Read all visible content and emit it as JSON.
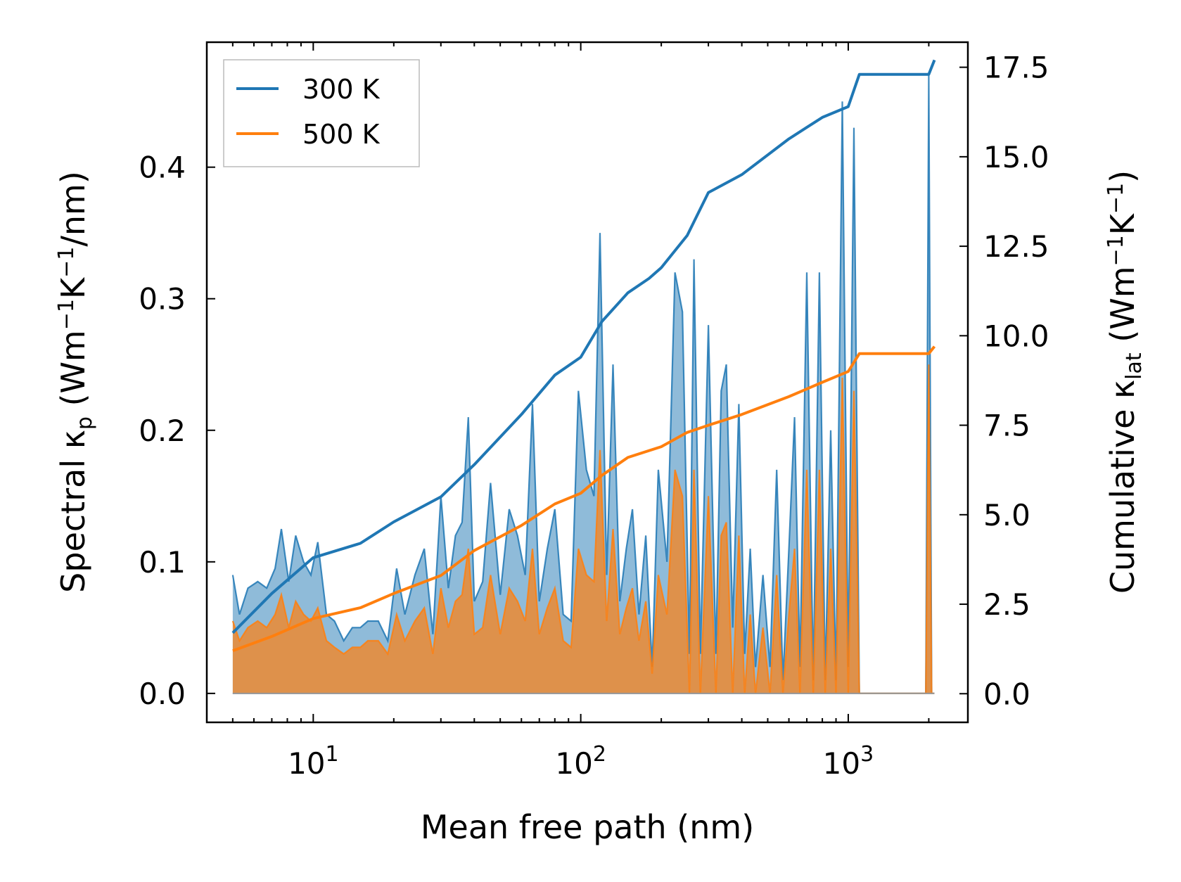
{
  "chart_data": {
    "type": "line",
    "title": "",
    "xlabel": "Mean free path (nm)",
    "ylabel_left": "Spectral κ_p (Wm⁻¹K⁻¹/nm)",
    "ylabel_right": "Cumulative κ_lat (Wm⁻¹K⁻¹)",
    "ylabel_left_parts": {
      "pre": "Spectral κ",
      "sub": "p",
      "post": " (Wm",
      "sup1": "−1",
      "mid": "K",
      "sup2": "−1",
      "tail": "/nm)"
    },
    "ylabel_right_parts": {
      "pre": "Cumulative κ",
      "sub": "lat",
      "post": " (Wm",
      "sup1": "−1",
      "mid": "K",
      "sup2": "−1",
      "tail": ")"
    },
    "xscale": "log",
    "xlim": [
      4,
      2800
    ],
    "ylim_left": [
      -0.022,
      0.495
    ],
    "ylim_right": [
      -0.8,
      18.2
    ],
    "x_ticks": [
      {
        "value": 10,
        "base": "10",
        "exp": "1"
      },
      {
        "value": 100,
        "base": "10",
        "exp": "2"
      },
      {
        "value": 1000,
        "base": "10",
        "exp": "3"
      }
    ],
    "y_left_ticks": [
      "0.0",
      "0.1",
      "0.2",
      "0.3",
      "0.4"
    ],
    "y_left_tick_values": [
      0,
      0.1,
      0.2,
      0.3,
      0.4
    ],
    "y_right_ticks": [
      "0.0",
      "2.5",
      "5.0",
      "7.5",
      "10.0",
      "12.5",
      "15.0",
      "17.5"
    ],
    "y_right_tick_values": [
      0,
      2.5,
      5,
      7.5,
      10,
      12.5,
      15,
      17.5
    ],
    "legend": {
      "position": "top-left",
      "entries": [
        "300 K",
        "500 K"
      ]
    },
    "colors": {
      "s300": "#1f77b4",
      "s500": "#ff7f0e",
      "fill300": "#1f77b4",
      "fill500": "#ff7f0e"
    },
    "series": [
      {
        "name": "300 K",
        "axis": "right",
        "kind": "cumulative",
        "x": [
          5,
          7,
          10,
          15,
          20,
          30,
          40,
          60,
          80,
          100,
          120,
          150,
          180,
          200,
          250,
          300,
          400,
          600,
          800,
          1000,
          1100,
          2000,
          2100
        ],
        "values": [
          1.7,
          2.8,
          3.8,
          4.2,
          4.8,
          5.5,
          6.4,
          7.8,
          8.9,
          9.4,
          10.4,
          11.2,
          11.6,
          11.9,
          12.8,
          14.0,
          14.5,
          15.5,
          16.1,
          16.4,
          17.3,
          17.3,
          17.7
        ]
      },
      {
        "name": "500 K",
        "axis": "right",
        "kind": "cumulative",
        "x": [
          5,
          7,
          10,
          15,
          20,
          30,
          40,
          60,
          80,
          100,
          120,
          150,
          200,
          250,
          300,
          400,
          600,
          800,
          1000,
          1100,
          2000,
          2100
        ],
        "values": [
          1.2,
          1.6,
          2.1,
          2.4,
          2.8,
          3.3,
          4.0,
          4.7,
          5.3,
          5.6,
          6.1,
          6.6,
          6.9,
          7.3,
          7.5,
          7.8,
          8.3,
          8.7,
          9.0,
          9.5,
          9.5,
          9.7
        ]
      },
      {
        "name": "Spectral 300 K",
        "axis": "left",
        "kind": "spectral",
        "x": [
          5,
          5.3,
          5.7,
          6.2,
          6.7,
          7.2,
          7.6,
          8.1,
          8.6,
          9.2,
          9.8,
          10.4,
          11.2,
          12,
          13,
          14,
          15,
          16,
          17.5,
          19,
          20.5,
          22,
          24,
          26,
          28,
          30,
          32,
          34,
          36,
          38,
          40,
          43,
          46,
          50,
          54,
          58,
          62,
          66,
          70,
          75,
          80,
          86,
          92,
          98,
          105,
          112,
          118,
          125,
          132,
          140,
          148,
          156,
          165,
          175,
          185,
          195,
          210,
          225,
          240,
          255,
          265,
          280,
          300,
          320,
          335,
          350,
          370,
          390,
          410,
          430,
          450,
          480,
          510,
          540,
          570,
          600,
          630,
          660,
          700,
          740,
          780,
          820,
          860,
          900,
          950,
          1000,
          1050,
          1100,
          1150,
          1500,
          1950,
          2000,
          2050,
          2100
        ],
        "values": [
          0.09,
          0.06,
          0.08,
          0.085,
          0.08,
          0.095,
          0.125,
          0.085,
          0.12,
          0.1,
          0.09,
          0.115,
          0.06,
          0.055,
          0.04,
          0.05,
          0.05,
          0.055,
          0.055,
          0.04,
          0.095,
          0.06,
          0.09,
          0.11,
          0.045,
          0.15,
          0.08,
          0.12,
          0.13,
          0.21,
          0.07,
          0.085,
          0.16,
          0.075,
          0.14,
          0.12,
          0.09,
          0.22,
          0.07,
          0.11,
          0.14,
          0.06,
          0.055,
          0.23,
          0.17,
          0.15,
          0.35,
          0.09,
          0.25,
          0.07,
          0.11,
          0.14,
          0.06,
          0.12,
          0.02,
          0.17,
          0.1,
          0.32,
          0.29,
          0.03,
          0.33,
          0.03,
          0.28,
          0.03,
          0.23,
          0.25,
          0.05,
          0.22,
          0.03,
          0.11,
          0.02,
          0.09,
          0.02,
          0.17,
          0.01,
          0.11,
          0.21,
          0.02,
          0.32,
          0.01,
          0.32,
          0.01,
          0.2,
          0.01,
          0.45,
          0.02,
          0.43,
          0.0,
          0.0,
          0.0,
          0.0,
          0.47,
          0.0,
          0.0
        ]
      },
      {
        "name": "Spectral 500 K",
        "axis": "left",
        "kind": "spectral",
        "x": [
          5,
          5.3,
          5.7,
          6.2,
          6.7,
          7.2,
          7.6,
          8.1,
          8.6,
          9.2,
          9.8,
          10.4,
          11.2,
          12,
          13,
          14,
          15,
          16,
          17.5,
          19,
          20.5,
          22,
          24,
          26,
          28,
          30,
          32,
          34,
          36,
          38,
          40,
          43,
          46,
          50,
          54,
          58,
          62,
          66,
          70,
          75,
          80,
          86,
          92,
          98,
          105,
          112,
          118,
          125,
          132,
          140,
          148,
          156,
          165,
          175,
          185,
          195,
          210,
          225,
          240,
          255,
          265,
          280,
          300,
          320,
          335,
          350,
          370,
          390,
          410,
          430,
          450,
          480,
          510,
          540,
          570,
          600,
          630,
          660,
          700,
          740,
          780,
          820,
          860,
          900,
          950,
          1000,
          1050,
          1100,
          1150,
          1500,
          1950,
          2000,
          2050,
          2100
        ],
        "values": [
          0.055,
          0.04,
          0.05,
          0.055,
          0.05,
          0.06,
          0.075,
          0.05,
          0.07,
          0.06,
          0.055,
          0.065,
          0.04,
          0.035,
          0.03,
          0.035,
          0.035,
          0.04,
          0.04,
          0.03,
          0.06,
          0.04,
          0.055,
          0.065,
          0.03,
          0.08,
          0.05,
          0.07,
          0.075,
          0.11,
          0.045,
          0.05,
          0.09,
          0.045,
          0.08,
          0.07,
          0.055,
          0.11,
          0.045,
          0.065,
          0.08,
          0.04,
          0.035,
          0.11,
          0.09,
          0.085,
          0.185,
          0.055,
          0.125,
          0.045,
          0.065,
          0.08,
          0.04,
          0.07,
          0.015,
          0.09,
          0.06,
          0.17,
          0.15,
          0.0,
          0.17,
          0.0,
          0.15,
          0.0,
          0.12,
          0.13,
          0.0,
          0.12,
          0.0,
          0.06,
          0.0,
          0.05,
          0.0,
          0.09,
          0.0,
          0.06,
          0.11,
          0.0,
          0.17,
          0.0,
          0.17,
          0.0,
          0.11,
          0.0,
          0.24,
          0.0,
          0.23,
          0.0,
          0.0,
          0.0,
          0.0,
          0.25,
          0.0,
          0.0
        ]
      }
    ]
  }
}
